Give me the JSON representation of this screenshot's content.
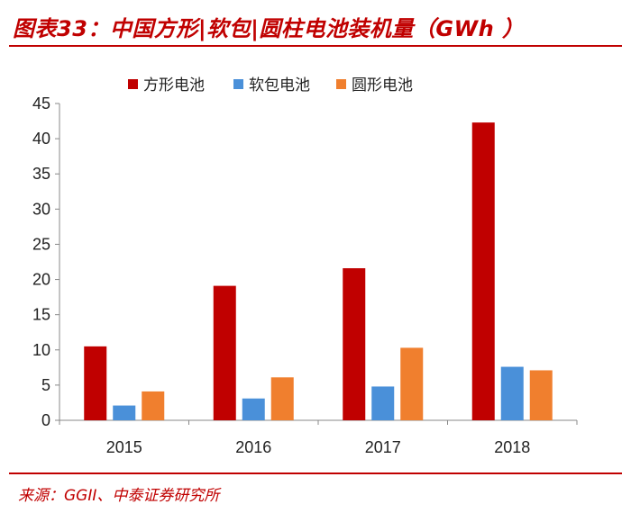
{
  "title": "图表33：中国方形|软包|圆柱电池装机量（GWh ）",
  "source": "来源：GGII、中泰证券研究所",
  "chart_data": {
    "type": "bar",
    "title": "中国方形|软包|圆柱电池装机量（GWh ）",
    "xlabel": "",
    "ylabel": "",
    "categories": [
      "2015",
      "2016",
      "2017",
      "2018"
    ],
    "ylim": [
      0,
      45
    ],
    "yticks": [
      0,
      5,
      10,
      15,
      20,
      25,
      30,
      35,
      40,
      45
    ],
    "series": [
      {
        "name": "方形电池",
        "color": "#c00000",
        "values": [
          10.5,
          19.1,
          21.6,
          42.3
        ]
      },
      {
        "name": "软包电池",
        "color": "#4a90d9",
        "values": [
          2.1,
          3.1,
          4.8,
          7.6
        ]
      },
      {
        "name": "圆形电池",
        "color": "#f07f2e",
        "values": [
          4.1,
          6.1,
          10.3,
          7.1
        ]
      }
    ],
    "legend_position": "top",
    "grid": false
  }
}
